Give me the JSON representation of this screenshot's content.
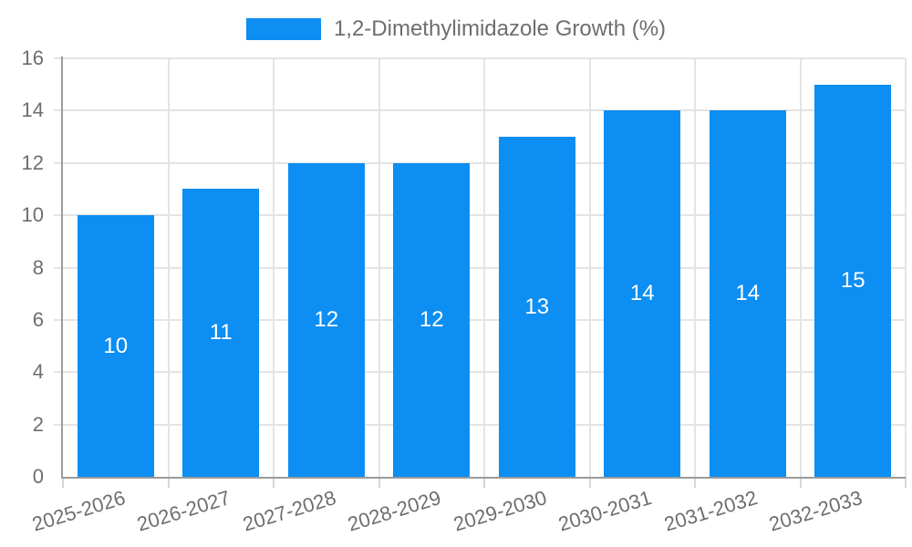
{
  "legend": {
    "label": "1,2-Dimethylimidazole Growth (%)"
  },
  "chart_data": {
    "type": "bar",
    "title": "",
    "series_name": "1,2-Dimethylimidazole Growth (%)",
    "categories": [
      "2025-2026",
      "2026-2027",
      "2027-2028",
      "2028-2029",
      "2029-2030",
      "2030-2031",
      "2031-2032",
      "2032-2033"
    ],
    "values": [
      10,
      11,
      12,
      12,
      13,
      14,
      14,
      15
    ],
    "value_labels": [
      "10",
      "11",
      "12",
      "12",
      "13",
      "14",
      "14",
      "15"
    ],
    "xlabel": "",
    "ylabel": "",
    "ylim": [
      0,
      16
    ],
    "ytick_step": 2,
    "ytick_labels": [
      "0",
      "2",
      "4",
      "6",
      "8",
      "10",
      "12",
      "14",
      "16"
    ],
    "grid": true,
    "legend_position": "top",
    "x_label_rotation_deg": -17,
    "colors": {
      "bar": "#0D8EF2",
      "grid": "#E4E4E4",
      "axis": "#9B9B9B",
      "tick": "#D6D6D6",
      "tick_label": "#6E6E6E",
      "value_label": "#FFFFFF",
      "background": "#FFFFFF"
    }
  }
}
